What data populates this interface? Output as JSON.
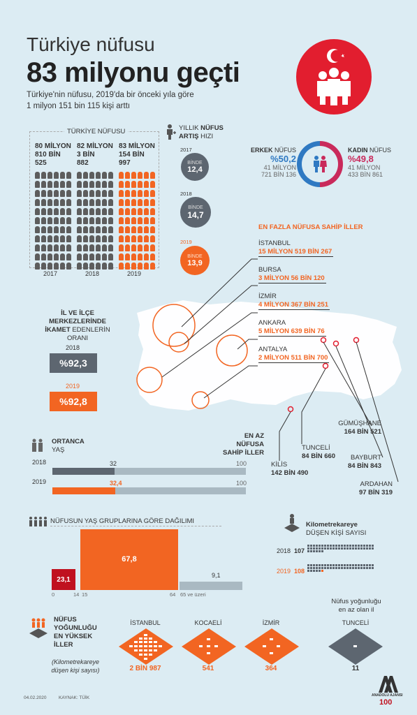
{
  "header": {
    "title_line1": "Türkiye nüfusu",
    "title_line2": "83 milyonu geçti",
    "subtitle_line1": "Türkiye'nin nüfusu, 2019'da bir önceki yıla göre",
    "subtitle_line2": "1 milyon 151 bin 115 kişi arttı"
  },
  "population": {
    "label": "TÜRKİYE NÜFUSU",
    "years": [
      {
        "year": "2017",
        "line1": "80 MİLYON",
        "line2": "810 BİN",
        "line3": "525",
        "value": 80810525,
        "color": "#5d5d5d"
      },
      {
        "year": "2018",
        "line1": "82 MİLYON",
        "line2": "3 BİN",
        "line3": "882",
        "value": 82003882,
        "color": "#5d5d5d"
      },
      {
        "year": "2019",
        "line1": "83 MİLYON",
        "line2": "154 BİN",
        "line3": "997",
        "value": 83154997,
        "color": "#f26522"
      }
    ]
  },
  "growth": {
    "label_line1": "YILLIK",
    "label_bold1": "NÜFUS",
    "label_bold2": "ARTIŞ",
    "label_line2": "HIZI",
    "items": [
      {
        "year": "2017",
        "unit": "BİNDE",
        "value": "12,4"
      },
      {
        "year": "2018",
        "unit": "BİNDE",
        "value": "14,7"
      },
      {
        "year": "2019",
        "unit": "BİNDE",
        "value": "13,9"
      }
    ]
  },
  "gender": {
    "male_label_bold": "ERKEK",
    "male_label": "NÜFUS",
    "male_pct": "%50,2",
    "male_abs1": "41 MİLYON",
    "male_abs2": "721 BİN 136",
    "female_label_bold": "KADIN",
    "female_label": "NÜFUS",
    "female_pct": "%49,8",
    "female_abs1": "41 MİLYON",
    "female_abs2": "433 BİN 861",
    "male_color": "#2f79c2",
    "female_color": "#c92a5b"
  },
  "top_cities": {
    "title": "EN FAZLA NÜFUSA SAHİP İLLER",
    "items": [
      {
        "name": "İSTANBUL",
        "value": "15 MİLYON 519 BİN 267"
      },
      {
        "name": "BURSA",
        "value": "3 MİLYON 56 BİN 120"
      },
      {
        "name": "İZMİR",
        "value": "4 MİLYON 367 BİN 251"
      },
      {
        "name": "ANKARA",
        "value": "5 MİLYON 639 BİN 76"
      },
      {
        "name": "ANTALYA",
        "value": "2 MİLYON 511 BİN 700"
      }
    ]
  },
  "least_cities": {
    "title_line1": "EN AZ NÜFUSA",
    "title_line2": "SAHİP İLLER",
    "items": [
      {
        "name": "KİLİS",
        "value": "142 BİN 490"
      },
      {
        "name": "TUNCELİ",
        "value": "84 BİN 660"
      },
      {
        "name": "GÜMÜŞHANE",
        "value": "164 BİN 521"
      },
      {
        "name": "BAYBURT",
        "value": "84 BİN 843"
      },
      {
        "name": "ARDAHAN",
        "value": "97 BİN 319"
      }
    ]
  },
  "residence": {
    "title_bold1": "İL VE İLÇE",
    "title_bold2": "MERKEZLERİNDE",
    "title_bold3": "İKAMET",
    "title_rest": "EDENLERİN",
    "title_line4": "ORANI",
    "items": [
      {
        "year": "2018",
        "value": "%92,3",
        "color": "#5d6670"
      },
      {
        "year": "2019",
        "value": "%92,8",
        "color": "#f26522"
      }
    ]
  },
  "median_age": {
    "title_bold": "ORTANCA",
    "title": "YAŞ",
    "max_label": "100",
    "rows": [
      {
        "year": "2018",
        "value": 32,
        "label": "32",
        "color": "#5d6670"
      },
      {
        "year": "2019",
        "value": 32.4,
        "label": "32,4",
        "color": "#f26522"
      }
    ]
  },
  "chart_data": {
    "type": "bar",
    "title": "NÜFUSUN YAŞ GRUPLARINA GÖRE DAĞILIMI",
    "categories": [
      "0-14",
      "15-64",
      "65 ve üzeri"
    ],
    "values": [
      23.1,
      67.8,
      9.1
    ],
    "value_labels": [
      "23,1",
      "67,8",
      "9,1"
    ],
    "tick_labels": [
      "0",
      "14",
      "15",
      "64",
      "65 ve üzeri"
    ],
    "colors": [
      "#c0111f",
      "#f26522",
      "#a9b9c2"
    ]
  },
  "km2": {
    "title_bold": "Kilometrekareye",
    "title": "DÜŞEN KİŞİ SAYISI",
    "rows": [
      {
        "year": "2018",
        "value": "107",
        "count": 107
      },
      {
        "year": "2019",
        "value": "108",
        "count": 108
      }
    ]
  },
  "density": {
    "title_line1": "NÜFUS",
    "title_line2": "YOĞUNLUĞU",
    "title_line3": "EN YÜKSEK",
    "title_line4": "İLLER",
    "note_line1": "(Kilometrekareye",
    "note_line2": "düşen kişi sayısı)",
    "least_note_line1": "Nüfus yoğunluğu",
    "least_note_line2": "en az olan il",
    "items": [
      {
        "name": "İSTANBUL",
        "value": "2 BİN 987"
      },
      {
        "name": "KOCAELİ",
        "value": "541"
      },
      {
        "name": "İZMİR",
        "value": "364"
      },
      {
        "name": "TUNCELİ",
        "value": "11"
      }
    ]
  },
  "footer": {
    "date": "04.02.2020",
    "source": "KAYNAK: TÜİK",
    "agency": "ANADOLU AJANSI"
  }
}
